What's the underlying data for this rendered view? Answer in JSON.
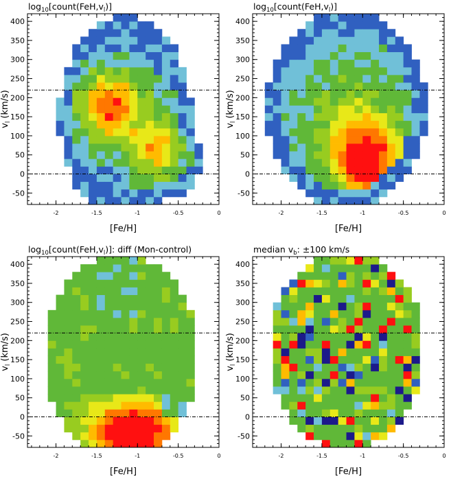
{
  "chart_data": [
    {
      "type": "heatmap",
      "title_main": "log",
      "title_sub": "10",
      "title_rest": "[count(FeH,v",
      "title_rest_sub": "l",
      "title_end": ")]",
      "xlabel": "[Fe/H]",
      "ylabel_main": "v",
      "ylabel_sub": "l",
      "ylabel_rest": " (km/s)",
      "xlim": [
        -2.35,
        0.0
      ],
      "ylim": [
        -80,
        420
      ],
      "xticks": [
        "-2",
        "-1.5",
        "-1",
        "-0.5",
        "0"
      ],
      "yticks": [
        "-50",
        "0",
        "50",
        "100",
        "150",
        "200",
        "250",
        "300",
        "350",
        "400"
      ],
      "hlines": [
        0,
        220
      ],
      "cell_size": {
        "feh": 0.1,
        "vl": 20
      },
      "palette": [
        "#1c1a8a",
        "#3060c0",
        "#70c0d8",
        "#60b838",
        "#98cc20",
        "#e8e818",
        "#ffbb00",
        "#ff7700",
        "#ff1010"
      ],
      "pattern": "disc"
    },
    {
      "type": "heatmap",
      "title_main": "log",
      "title_sub": "10",
      "title_rest": "[count(FeH,v",
      "title_rest_sub": "l",
      "title_end": ")]",
      "xlabel": "[Fe/H]",
      "ylabel_main": "v",
      "ylabel_sub": "l",
      "ylabel_rest": " (km/s)",
      "xlim": [
        -2.35,
        0.0
      ],
      "ylim": [
        -80,
        420
      ],
      "xticks": [
        "-2",
        "-1.5",
        "-1",
        "-0.5",
        "0"
      ],
      "yticks": [
        "-50",
        "0",
        "50",
        "100",
        "150",
        "200",
        "250",
        "300",
        "350",
        "400"
      ],
      "hlines": [
        0,
        220
      ],
      "cell_size": {
        "feh": 0.1,
        "vl": 20
      },
      "palette": [
        "#1c1a8a",
        "#3060c0",
        "#70c0d8",
        "#60b838",
        "#98cc20",
        "#e8e818",
        "#ffbb00",
        "#ff7700",
        "#ff1010"
      ],
      "pattern": "control"
    },
    {
      "type": "heatmap",
      "title_main": "log",
      "title_sub": "10",
      "title_rest": "[count(FeH,v",
      "title_rest_sub": "l",
      "title_end": ")]: diff (Mon-control)",
      "xlabel": "[Fe/H]",
      "ylabel_main": "v",
      "ylabel_sub": "l",
      "ylabel_rest": " (km/s)",
      "xlim": [
        -2.35,
        0.0
      ],
      "ylim": [
        -80,
        420
      ],
      "xticks": [
        "-2",
        "-1.5",
        "-1",
        "-0.5",
        "0"
      ],
      "yticks": [
        "-50",
        "0",
        "50",
        "100",
        "150",
        "200",
        "250",
        "300",
        "350",
        "400"
      ],
      "hlines": [
        0,
        220
      ],
      "cell_size": {
        "feh": 0.1,
        "vl": 20
      },
      "palette": [
        "#1c1a8a",
        "#3060c0",
        "#70c0d8",
        "#60b838",
        "#98cc20",
        "#e8e818",
        "#ffbb00",
        "#ff7700",
        "#ff1010"
      ],
      "pattern": "diff"
    },
    {
      "type": "heatmap",
      "title_main": "median v",
      "title_sub": "b",
      "title_rest": ": ±100 km/s",
      "title_rest_sub": "",
      "title_end": "",
      "xlabel": "[Fe/H]",
      "ylabel_main": "v",
      "ylabel_sub": "l",
      "ylabel_rest": " (km/s)",
      "xlim": [
        -2.35,
        0.0
      ],
      "ylim": [
        -80,
        420
      ],
      "xticks": [
        "-2",
        "-1.5",
        "-1",
        "-0.5",
        "0"
      ],
      "yticks": [
        "-50",
        "0",
        "50",
        "100",
        "150",
        "200",
        "250",
        "300",
        "350",
        "400"
      ],
      "hlines": [
        0,
        220
      ],
      "cell_size": {
        "feh": 0.1,
        "vl": 20
      },
      "palette": [
        "#1c1a8a",
        "#3060c0",
        "#70c0d8",
        "#60b838",
        "#98cc20",
        "#e8e818",
        "#ffbb00",
        "#ff7700",
        "#ff1010"
      ],
      "pattern": "median"
    }
  ]
}
